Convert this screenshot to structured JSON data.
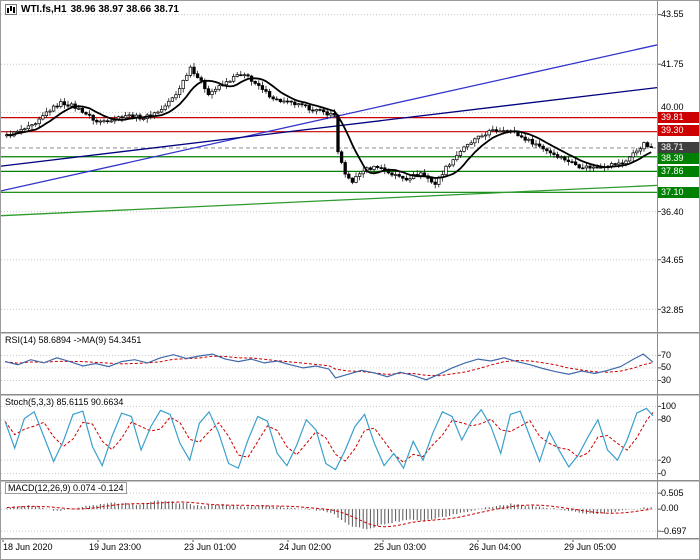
{
  "window": {
    "title_symbol": "WTI.fs,H1",
    "title_ohlc": "38.96 38.97 38.66 38.71"
  },
  "colors": {
    "resistance": "#cc0000",
    "support": "#008000",
    "current_badge": "#3f3f3f",
    "trend_blue": "#3333cc",
    "trend_navy": "#000080",
    "trend_green": "#2e9b2e",
    "rsi_line": "#4169aa",
    "stoch_line": "#3aa0cc",
    "signal_line": "#cc0000",
    "macd_hist": "#555555",
    "candle": "#000000"
  },
  "x_axis": {
    "labels": [
      "18 Jun 2020",
      "19 Jun 23:00",
      "23 Jun 01:00",
      "24 Jun 02:00",
      "25 Jun 03:00",
      "26 Jun 04:00",
      "29 Jun 05:00"
    ]
  },
  "chart_data": [
    {
      "type": "candlestick",
      "title": "WTI.fs,H1",
      "last_ohlc": {
        "open": 38.96,
        "high": 38.97,
        "low": 38.66,
        "close": 38.71
      },
      "ylim": [
        32.1,
        43.9
      ],
      "y_ticks": [
        "43.55",
        "41.75",
        "40.00",
        "36.40",
        "34.65",
        "32.85"
      ],
      "price_labels": [
        {
          "value": "39.81",
          "type": "resistance"
        },
        {
          "value": "39.30",
          "type": "resistance"
        },
        {
          "value": "38.71",
          "type": "current"
        },
        {
          "value": "38.39",
          "type": "support"
        },
        {
          "value": "37.86",
          "type": "support"
        },
        {
          "value": "37.10",
          "type": "support"
        }
      ],
      "hlines": [
        {
          "price": 39.81,
          "color": "#cc0000"
        },
        {
          "price": 39.3,
          "color": "#cc0000"
        },
        {
          "price": 38.71,
          "color": "#999999",
          "dash": true
        },
        {
          "price": 38.39,
          "color": "#008000"
        },
        {
          "price": 37.86,
          "color": "#008000"
        },
        {
          "price": 37.1,
          "color": "#008000"
        }
      ],
      "trendlines": [
        {
          "name": "uptrend-steep",
          "color": "#3333cc",
          "from": {
            "x": 0,
            "price": 37.15
          },
          "to": {
            "x": 1,
            "price": 42.45
          }
        },
        {
          "name": "uptrend-shallow",
          "color": "#000080",
          "from": {
            "x": 0,
            "price": 38.05
          },
          "to": {
            "x": 1,
            "price": 40.9
          }
        },
        {
          "name": "support-trend",
          "color": "#2e9b2e",
          "from": {
            "x": 0,
            "price": 36.25
          },
          "to": {
            "x": 1,
            "price": 37.35
          }
        }
      ],
      "candle_count": 180,
      "price_path": [
        [
          0,
          39.15
        ],
        [
          3,
          39.3
        ],
        [
          8,
          39.55
        ],
        [
          11,
          40.0
        ],
        [
          15,
          40.35
        ],
        [
          18,
          40.25
        ],
        [
          21,
          40.05
        ],
        [
          25,
          39.65
        ],
        [
          29,
          39.75
        ],
        [
          33,
          39.9
        ],
        [
          38,
          39.8
        ],
        [
          43,
          40.1
        ],
        [
          47,
          40.65
        ],
        [
          51,
          41.65
        ],
        [
          54,
          41.1
        ],
        [
          56,
          40.7
        ],
        [
          60,
          41.0
        ],
        [
          64,
          41.35
        ],
        [
          67,
          41.3
        ],
        [
          71,
          40.8
        ],
        [
          75,
          40.45
        ],
        [
          80,
          40.3
        ],
        [
          84,
          40.15
        ],
        [
          88,
          40.0
        ],
        [
          91,
          39.9
        ],
        [
          92,
          38.6
        ],
        [
          94,
          37.7
        ],
        [
          96,
          37.5
        ],
        [
          99,
          37.9
        ],
        [
          103,
          38.05
        ],
        [
          107,
          37.75
        ],
        [
          111,
          37.6
        ],
        [
          115,
          37.8
        ],
        [
          119,
          37.4
        ],
        [
          122,
          38.0
        ],
        [
          126,
          38.6
        ],
        [
          130,
          39.0
        ],
        [
          134,
          39.3
        ],
        [
          139,
          39.4
        ],
        [
          143,
          39.1
        ],
        [
          147,
          38.85
        ],
        [
          151,
          38.55
        ],
        [
          155,
          38.3
        ],
        [
          159,
          38.05
        ],
        [
          163,
          38.0
        ],
        [
          167,
          38.1
        ],
        [
          171,
          38.15
        ],
        [
          174,
          38.5
        ],
        [
          177,
          38.85
        ],
        [
          179,
          38.71
        ]
      ]
    },
    {
      "type": "line",
      "name": "RSI",
      "label": "RSI(14) 58.6894 ->MA(9) 54.3451",
      "values": {
        "rsi": 58.6894,
        "ma": 54.3451
      },
      "y_ticks": [
        "70",
        "50",
        "30"
      ],
      "levels": [
        70,
        50,
        30
      ],
      "ylim": [
        10,
        96
      ],
      "points": [
        [
          0,
          60
        ],
        [
          0.02,
          55
        ],
        [
          0.04,
          63
        ],
        [
          0.06,
          58
        ],
        [
          0.08,
          66
        ],
        [
          0.1,
          60
        ],
        [
          0.12,
          53
        ],
        [
          0.14,
          57
        ],
        [
          0.16,
          52
        ],
        [
          0.18,
          60
        ],
        [
          0.2,
          63
        ],
        [
          0.22,
          58
        ],
        [
          0.24,
          66
        ],
        [
          0.26,
          71
        ],
        [
          0.28,
          65
        ],
        [
          0.3,
          69
        ],
        [
          0.32,
          72
        ],
        [
          0.34,
          64
        ],
        [
          0.36,
          60
        ],
        [
          0.38,
          64
        ],
        [
          0.4,
          58
        ],
        [
          0.42,
          61
        ],
        [
          0.44,
          55
        ],
        [
          0.46,
          50
        ],
        [
          0.48,
          53
        ],
        [
          0.5,
          48
        ],
        [
          0.51,
          34
        ],
        [
          0.53,
          40
        ],
        [
          0.55,
          46
        ],
        [
          0.57,
          42
        ],
        [
          0.59,
          36
        ],
        [
          0.61,
          43
        ],
        [
          0.63,
          38
        ],
        [
          0.65,
          31
        ],
        [
          0.67,
          40
        ],
        [
          0.69,
          50
        ],
        [
          0.71,
          58
        ],
        [
          0.73,
          64
        ],
        [
          0.75,
          61
        ],
        [
          0.77,
          66
        ],
        [
          0.79,
          60
        ],
        [
          0.81,
          55
        ],
        [
          0.83,
          49
        ],
        [
          0.85,
          44
        ],
        [
          0.87,
          40
        ],
        [
          0.89,
          45
        ],
        [
          0.91,
          41
        ],
        [
          0.93,
          46
        ],
        [
          0.95,
          52
        ],
        [
          0.97,
          64
        ],
        [
          0.985,
          72
        ],
        [
          1,
          59
        ]
      ]
    },
    {
      "type": "line",
      "name": "Stochastic",
      "label": "Stoch(5,3,3) 85.6115 90.6634",
      "values": {
        "main": 85.6115,
        "signal": 90.6634
      },
      "y_ticks": [
        "100",
        "80",
        "20",
        "0"
      ],
      "levels": [
        100,
        80,
        20,
        0
      ],
      "ylim": [
        -8,
        108
      ],
      "points": [
        [
          0,
          78
        ],
        [
          0.015,
          38
        ],
        [
          0.03,
          82
        ],
        [
          0.045,
          92
        ],
        [
          0.06,
          55
        ],
        [
          0.075,
          18
        ],
        [
          0.09,
          48
        ],
        [
          0.105,
          88
        ],
        [
          0.12,
          93
        ],
        [
          0.135,
          40
        ],
        [
          0.15,
          12
        ],
        [
          0.165,
          55
        ],
        [
          0.18,
          90
        ],
        [
          0.195,
          85
        ],
        [
          0.21,
          35
        ],
        [
          0.225,
          70
        ],
        [
          0.24,
          94
        ],
        [
          0.255,
          88
        ],
        [
          0.27,
          45
        ],
        [
          0.285,
          20
        ],
        [
          0.3,
          75
        ],
        [
          0.315,
          92
        ],
        [
          0.33,
          60
        ],
        [
          0.345,
          15
        ],
        [
          0.36,
          8
        ],
        [
          0.375,
          50
        ],
        [
          0.39,
          85
        ],
        [
          0.405,
          78
        ],
        [
          0.42,
          30
        ],
        [
          0.435,
          12
        ],
        [
          0.45,
          42
        ],
        [
          0.465,
          80
        ],
        [
          0.48,
          65
        ],
        [
          0.495,
          15
        ],
        [
          0.51,
          6
        ],
        [
          0.525,
          35
        ],
        [
          0.54,
          70
        ],
        [
          0.555,
          88
        ],
        [
          0.57,
          45
        ],
        [
          0.585,
          12
        ],
        [
          0.6,
          30
        ],
        [
          0.615,
          8
        ],
        [
          0.63,
          48
        ],
        [
          0.645,
          20
        ],
        [
          0.66,
          60
        ],
        [
          0.675,
          92
        ],
        [
          0.69,
          85
        ],
        [
          0.705,
          50
        ],
        [
          0.72,
          78
        ],
        [
          0.735,
          95
        ],
        [
          0.75,
          70
        ],
        [
          0.765,
          30
        ],
        [
          0.78,
          88
        ],
        [
          0.795,
          93
        ],
        [
          0.81,
          55
        ],
        [
          0.825,
          18
        ],
        [
          0.84,
          62
        ],
        [
          0.855,
          35
        ],
        [
          0.87,
          10
        ],
        [
          0.885,
          28
        ],
        [
          0.9,
          55
        ],
        [
          0.915,
          80
        ],
        [
          0.93,
          35
        ],
        [
          0.945,
          20
        ],
        [
          0.96,
          50
        ],
        [
          0.975,
          90
        ],
        [
          0.99,
          97
        ],
        [
          1,
          86
        ]
      ]
    },
    {
      "type": "histogram",
      "name": "MACD",
      "label": "MACD(12,26,9) 0.074 -0.124",
      "values": {
        "macd": 0.074,
        "signal": -0.124
      },
      "y_ticks": [
        "0.505",
        "0.00",
        "-0.697"
      ],
      "levels": [
        0.505,
        0,
        -0.697
      ],
      "ylim": [
        -0.85,
        0.7
      ],
      "path": [
        [
          0,
          0.05
        ],
        [
          6,
          0.12
        ],
        [
          10,
          0.04
        ],
        [
          14,
          -0.05
        ],
        [
          18,
          0.02
        ],
        [
          24,
          0.12
        ],
        [
          30,
          0.2
        ],
        [
          36,
          0.15
        ],
        [
          42,
          0.26
        ],
        [
          48,
          0.2
        ],
        [
          54,
          0.1
        ],
        [
          60,
          0.15
        ],
        [
          66,
          0.08
        ],
        [
          72,
          0.12
        ],
        [
          78,
          0.05
        ],
        [
          84,
          0.0
        ],
        [
          88,
          -0.05
        ],
        [
          91,
          -0.18
        ],
        [
          94,
          -0.45
        ],
        [
          97,
          -0.58
        ],
        [
          100,
          -0.63
        ],
        [
          104,
          -0.5
        ],
        [
          108,
          -0.4
        ],
        [
          112,
          -0.32
        ],
        [
          116,
          -0.37
        ],
        [
          120,
          -0.27
        ],
        [
          124,
          -0.17
        ],
        [
          128,
          -0.07
        ],
        [
          132,
          0.03
        ],
        [
          136,
          0.1
        ],
        [
          140,
          0.16
        ],
        [
          144,
          0.13
        ],
        [
          148,
          0.07
        ],
        [
          152,
          0.01
        ],
        [
          156,
          -0.07
        ],
        [
          160,
          -0.13
        ],
        [
          164,
          -0.16
        ],
        [
          168,
          -0.1
        ],
        [
          172,
          -0.04
        ],
        [
          175,
          0.02
        ],
        [
          179,
          0.074
        ]
      ]
    }
  ]
}
